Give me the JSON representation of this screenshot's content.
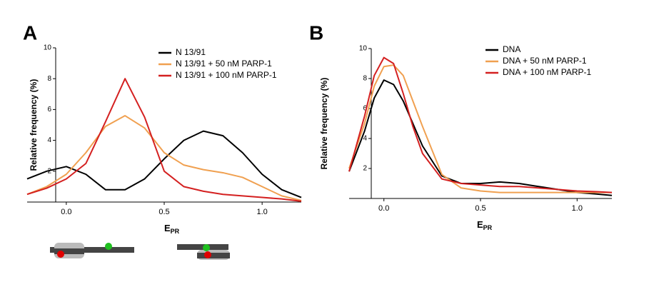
{
  "chart_data": [
    {
      "type": "line",
      "panel": "A",
      "ylabel": "Relative frequency (%)",
      "xlabel": {
        "main": "E",
        "sub": "PR"
      },
      "x": [
        -0.2,
        -0.1,
        0,
        0.1,
        0.2,
        0.3,
        0.4,
        0.5,
        0.6,
        0.7,
        0.8,
        0.9,
        1.0,
        1.1,
        1.2
      ],
      "series": [
        {
          "name": "N 13/91",
          "color": "#000000",
          "values": [
            1.5,
            2.0,
            2.3,
            1.8,
            0.8,
            0.8,
            1.5,
            2.8,
            4.0,
            4.6,
            4.3,
            3.2,
            1.8,
            0.8,
            0.3
          ]
        },
        {
          "name": "N 13/91 + 50 nM PARP-1",
          "color": "#f0a050",
          "values": [
            0.5,
            1.0,
            1.8,
            3.2,
            4.9,
            5.6,
            4.8,
            3.2,
            2.4,
            2.1,
            1.9,
            1.6,
            1.0,
            0.4,
            0.1
          ]
        },
        {
          "name": "N 13/91 + 100 nM PARP-1",
          "color": "#d42020",
          "values": [
            0.5,
            0.9,
            1.5,
            2.5,
            5.2,
            8.0,
            5.5,
            2.0,
            1.0,
            0.7,
            0.5,
            0.4,
            0.3,
            0.2,
            0.05
          ]
        }
      ],
      "xlim": [
        -0.2,
        1.2
      ],
      "xticks": [
        {
          "value": 0,
          "label": "0.0"
        },
        0.5,
        {
          "value": 1,
          "label": "1.0"
        }
      ],
      "ylim": [
        0,
        10
      ],
      "yticks": [
        2,
        4,
        6,
        8,
        10
      ],
      "legend": "top-right"
    },
    {
      "type": "line",
      "panel": "B",
      "ylabel": "Relative frequency (%)",
      "xlabel": {
        "main": "E",
        "sub": "PR"
      },
      "x": [
        -0.18,
        -0.1,
        -0.05,
        0,
        0.05,
        0.1,
        0.15,
        0.2,
        0.3,
        0.4,
        0.5,
        0.6,
        0.7,
        0.8,
        0.9,
        1.0,
        1.1,
        1.18
      ],
      "series": [
        {
          "name": "DNA",
          "color": "#000000",
          "values": [
            1.8,
            4.5,
            6.7,
            7.9,
            7.6,
            6.5,
            5.0,
            3.5,
            1.5,
            1.0,
            1.0,
            1.1,
            1.0,
            0.8,
            0.6,
            0.4,
            0.3,
            0.2
          ]
        },
        {
          "name": "DNA + 50 nM PARP-1",
          "color": "#f0a050",
          "values": [
            2.0,
            5.0,
            7.5,
            8.8,
            8.9,
            8.2,
            6.5,
            4.8,
            1.6,
            0.7,
            0.5,
            0.4,
            0.4,
            0.4,
            0.4,
            0.4,
            0.4,
            0.4
          ]
        },
        {
          "name": "DNA + 100 nM PARP-1",
          "color": "#d42020",
          "values": [
            1.8,
            5.5,
            8.2,
            9.4,
            9.0,
            7.0,
            4.8,
            3.0,
            1.3,
            1.0,
            0.9,
            0.8,
            0.8,
            0.7,
            0.6,
            0.5,
            0.45,
            0.4
          ]
        }
      ],
      "xlim": [
        -0.18,
        1.18
      ],
      "xticks": [
        {
          "value": 0,
          "label": "0.0"
        },
        0.5,
        {
          "value": 1,
          "label": "1.0"
        }
      ],
      "ylim": [
        0,
        10
      ],
      "yticks": [
        2,
        4,
        6,
        8,
        10
      ],
      "legend": "top-right"
    }
  ]
}
